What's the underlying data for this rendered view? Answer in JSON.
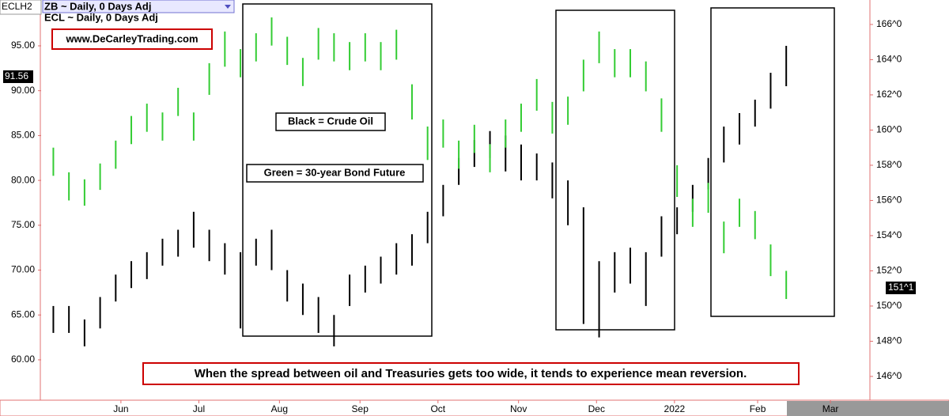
{
  "chart_data": {
    "type": "ohlc",
    "symbol": "ECLH2",
    "x": [
      126,
      132,
      138,
      144,
      150,
      156,
      162,
      168,
      174,
      180,
      186,
      192,
      198,
      204,
      210,
      216,
      222,
      228,
      234,
      240,
      246,
      252,
      258,
      264,
      270,
      276,
      282,
      288,
      294,
      300,
      306,
      312,
      318,
      324,
      330,
      336,
      342,
      348,
      354,
      360,
      366,
      372,
      378,
      384,
      390,
      396,
      402,
      408
    ],
    "xlim": [
      121.3,
      440.2
    ],
    "xticks": [
      {
        "value": 152,
        "label": "Jun"
      },
      {
        "value": 182,
        "label": "Jul"
      },
      {
        "value": 213,
        "label": "Aug"
      },
      {
        "value": 244,
        "label": "Sep"
      },
      {
        "value": 274,
        "label": "Oct"
      },
      {
        "value": 305,
        "label": "Nov"
      },
      {
        "value": 335,
        "label": "Dec"
      },
      {
        "value": 365,
        "label": "2022"
      },
      {
        "value": 397,
        "label": "Feb"
      },
      {
        "value": 425,
        "label": "Mar"
      }
    ],
    "ylim": [
      56.03,
      100.11
    ],
    "yticks": [
      {
        "value": 60,
        "label": "60.00"
      },
      {
        "value": 65,
        "label": "65.00"
      },
      {
        "value": 70,
        "label": "70.00"
      },
      {
        "value": 75,
        "label": "75.00"
      },
      {
        "value": 80,
        "label": "80.00"
      },
      {
        "value": 85,
        "label": "85.00"
      },
      {
        "value": 90,
        "label": "90.00"
      },
      {
        "value": 95,
        "label": "95.00"
      }
    ],
    "y2lim": [
      144.92,
      167.39
    ],
    "y2ticks": [
      {
        "value": 146,
        "label": "146^0"
      },
      {
        "value": 148,
        "label": "148^0"
      },
      {
        "value": 150,
        "label": "150^0"
      },
      {
        "value": 152,
        "label": "152^0"
      },
      {
        "value": 154,
        "label": "154^0"
      },
      {
        "value": 156,
        "label": "156^0"
      },
      {
        "value": 158,
        "label": "158^0"
      },
      {
        "value": 160,
        "label": "160^0"
      },
      {
        "value": 162,
        "label": "162^0"
      },
      {
        "value": 164,
        "label": "164^0"
      },
      {
        "value": 166,
        "label": "166^0"
      }
    ],
    "grid": false,
    "series": [
      {
        "name": "ECL ~ Daily, 0 Days Adj",
        "color": "#000000",
        "low": [
          63,
          63,
          61.5,
          63.5,
          66.5,
          68,
          69,
          70.5,
          71.5,
          72.5,
          71,
          69.5,
          63.5,
          70.5,
          70,
          66.5,
          65,
          63,
          61.5,
          66,
          67.5,
          68.5,
          69.5,
          70.5,
          73,
          76,
          79.5,
          81.5,
          82.5,
          81,
          80,
          80,
          78,
          75,
          64,
          62.5,
          67.5,
          68.5,
          66,
          71.5,
          74,
          76.5,
          79,
          82,
          84,
          86,
          88,
          90.5
        ],
        "high": [
          66,
          66,
          64.5,
          67,
          69.5,
          71,
          72,
          73.5,
          74.5,
          76.5,
          74.5,
          73,
          72,
          73.5,
          74.5,
          70,
          68.5,
          67,
          65,
          69.5,
          70.5,
          71.5,
          73,
          74,
          76.5,
          79.5,
          82.5,
          84.5,
          85.5,
          85,
          84,
          83,
          82,
          80,
          77,
          71,
          72,
          72.5,
          72,
          76,
          77,
          79.5,
          82.5,
          86,
          87.5,
          89,
          92,
          95
        ],
        "last": 91.56
      },
      {
        "name": "ZB ~ Daily, 0 Days Adj",
        "color": "#33cc33",
        "axis": "y2",
        "low": [
          157.4,
          156,
          155.7,
          156.6,
          157.8,
          159.2,
          159.9,
          159.4,
          160.8,
          159.4,
          162,
          163.6,
          163,
          163.9,
          164.8,
          163.7,
          162.5,
          164,
          163.9,
          163.4,
          163.9,
          163.4,
          164,
          160.6,
          158.3,
          159,
          157.8,
          158.7,
          157.6,
          159,
          159.9,
          161.1,
          159.8,
          160.3,
          162.2,
          163.8,
          163,
          163,
          162.2,
          159.9,
          156.2,
          154.5,
          155.3,
          153,
          154.5,
          153.8,
          151.7,
          150.4
        ],
        "high": [
          159,
          157.6,
          157.2,
          158.1,
          159.4,
          160.8,
          161.5,
          161,
          162.4,
          161,
          163.8,
          165.6,
          164.6,
          165.5,
          166.4,
          165.3,
          164.1,
          165.8,
          165.5,
          165,
          165.5,
          165,
          165.7,
          162.6,
          160.2,
          160.6,
          159.4,
          160.3,
          159.2,
          160.6,
          161.5,
          162.9,
          161.6,
          161.9,
          164,
          165.6,
          164.6,
          164.6,
          163.9,
          161.8,
          158,
          156.1,
          157,
          154.8,
          156.1,
          155.4,
          153.5,
          152
        ],
        "last": {
          "value": 151.03125,
          "label": "151^1"
        }
      }
    ],
    "annotations": [
      "www.DeCarleyTrading.com",
      "Black = Crude Oil",
      "Green = 30-year Bond Future"
    ],
    "caption": "When the spread between oil and Treasuries gets too wide, it tends to experience mean reversion."
  }
}
